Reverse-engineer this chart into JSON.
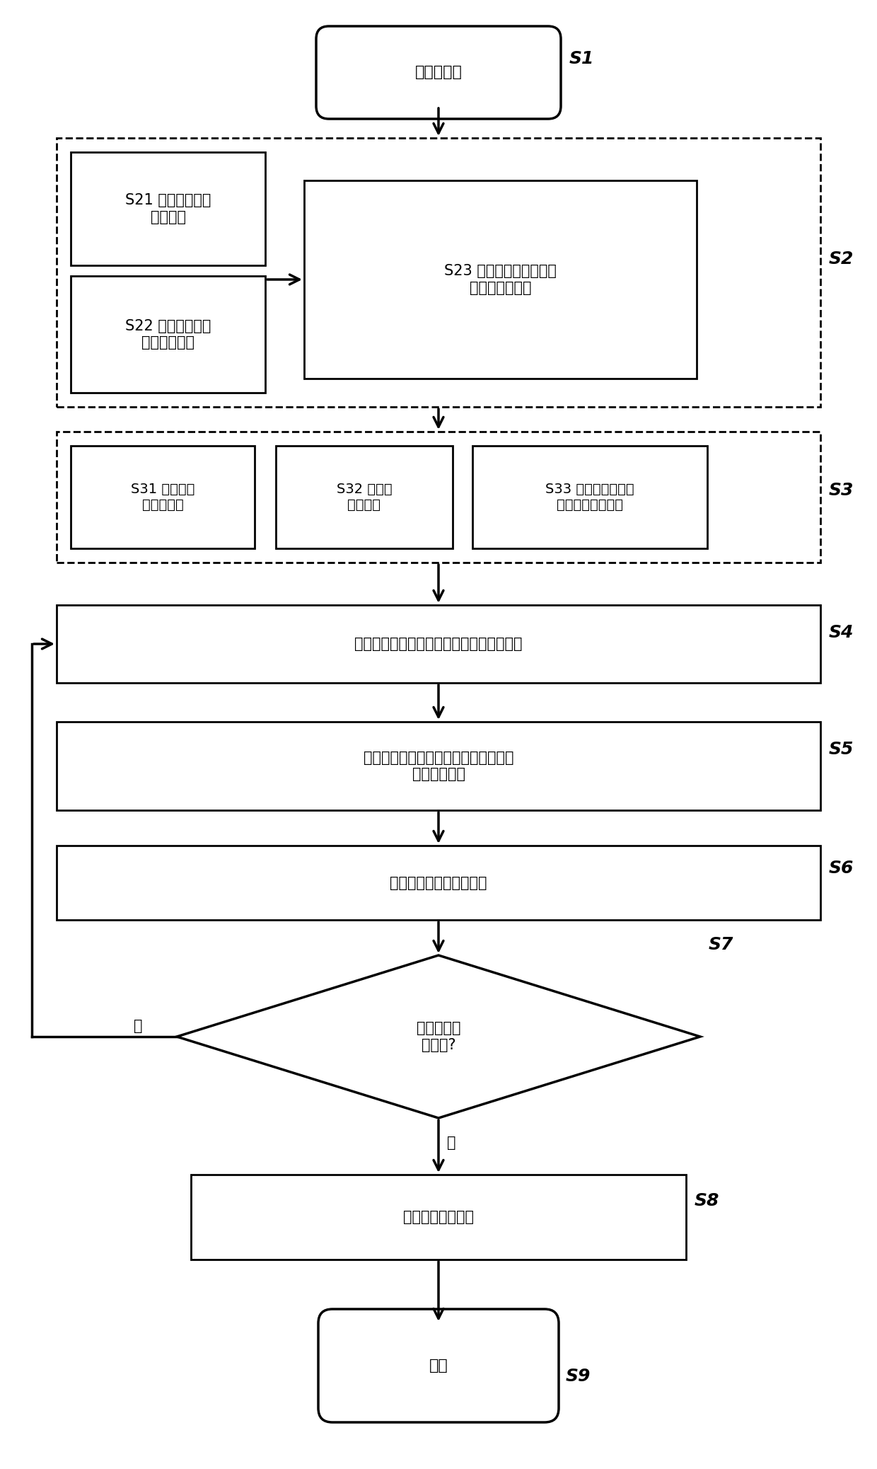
{
  "bg_color": "#ffffff",
  "fig_w": 12.4,
  "fig_h": 20.76,
  "dpi": 100,
  "nodes": {
    "s1_label": "参数初始化",
    "s21_label": "S21 路面不平度模\n型的建立",
    "s22_label": "S22 轮毂电机电磁\n力模型的建立",
    "s23_label": "S23 轮毂驱动电动汽车动\n力学模型的建立",
    "s31_label": "S31 优化设计\n变量的确定",
    "s32_label": "S32 约束条\n件的确定",
    "s33_label": "S33 单工况多目标优\n化设计函数的确定",
    "s4_label": "多工况多目标参数匹配优化设计函数的确定",
    "s5_label": "悬架系统与减振元件多工况多目标参数\n优化匹配设计",
    "s6_label": "匹配优化结果有效性验证",
    "s7_label": "是否满足设\n计要求?",
    "s8_label": "输出优化匹配结果",
    "s9_label": "结束",
    "yes_label": "是",
    "no_label": "否"
  },
  "tag_labels": [
    "S1",
    "S2",
    "S3",
    "S4",
    "S5",
    "S6",
    "S7",
    "S8",
    "S9"
  ],
  "lw_thick": 2.0,
  "lw_dash": 1.5,
  "fs_main": 15,
  "fs_tag": 16,
  "fs_small": 13
}
